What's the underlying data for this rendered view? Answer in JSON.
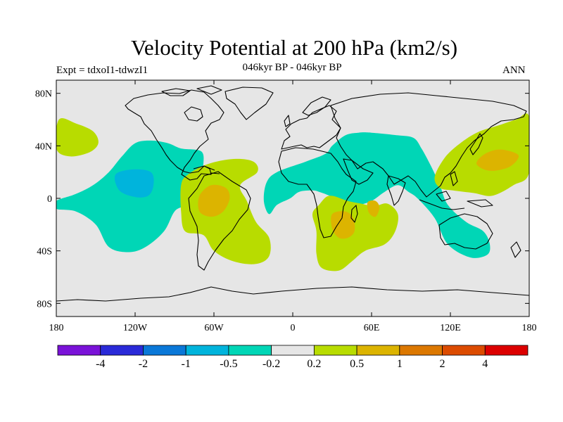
{
  "header": {
    "title": "Velocity Potential at 200 hPa (km2/s)",
    "left_subtitle": "Expt = tdxoI1-tdwzI1",
    "center_subtitle": "046kyr BP - 046kyr BP",
    "right_subtitle": "ANN"
  },
  "chart_data": {
    "type": "contour-map",
    "title": "Velocity Potential at 200 hPa (km2/s)",
    "projection": "cylindrical equidistant",
    "lon_range": [
      -180,
      180
    ],
    "lat_range": [
      -90,
      90
    ],
    "x_ticks": [
      {
        "lon": -180,
        "label": "180"
      },
      {
        "lon": -120,
        "label": "120W"
      },
      {
        "lon": -60,
        "label": "60W"
      },
      {
        "lon": 0,
        "label": "0"
      },
      {
        "lon": 60,
        "label": "60E"
      },
      {
        "lon": 120,
        "label": "120E"
      },
      {
        "lon": 180,
        "label": "180"
      }
    ],
    "y_ticks": [
      {
        "lat": 80,
        "label": "80N"
      },
      {
        "lat": 40,
        "label": "40N"
      },
      {
        "lat": 0,
        "label": "0"
      },
      {
        "lat": -40,
        "label": "40S"
      },
      {
        "lat": -80,
        "label": "80S"
      }
    ],
    "colorbar": {
      "colors": [
        "#7a12d8",
        "#2a2ad8",
        "#0a78d8",
        "#00b4dc",
        "#00d6b6",
        "#e6e6e6",
        "#b8dc00",
        "#dcb400",
        "#dc7800",
        "#dc4b00",
        "#dc0000"
      ],
      "labels": [
        "-4",
        "-2",
        "-1",
        "-0.5",
        "-0.2",
        "0.2",
        "0.5",
        "1",
        "2",
        "4"
      ]
    },
    "regions": [
      {
        "name": "central-pacific-north-positive",
        "level": "0.2-0.5",
        "color": "#b8dc00",
        "points": [
          [
            -180,
            38
          ],
          [
            -178,
            60
          ],
          [
            -165,
            57
          ],
          [
            -152,
            51
          ],
          [
            -148,
            42
          ],
          [
            -155,
            35
          ],
          [
            -170,
            32
          ]
        ]
      },
      {
        "name": "east-pacific-negative",
        "level": "-0.5--0.2",
        "color": "#00d6b6",
        "points": [
          [
            -180,
            -2
          ],
          [
            -180,
            -8
          ],
          [
            -165,
            -10
          ],
          [
            -150,
            -20
          ],
          [
            -140,
            -37
          ],
          [
            -125,
            -41
          ],
          [
            -112,
            -37
          ],
          [
            -98,
            -25
          ],
          [
            -90,
            -10
          ],
          [
            -82,
            -5
          ],
          [
            -75,
            5
          ],
          [
            -71,
            17
          ],
          [
            -68,
            27
          ],
          [
            -70,
            36
          ],
          [
            -85,
            38
          ],
          [
            -95,
            42
          ],
          [
            -108,
            44
          ],
          [
            -120,
            42
          ],
          [
            -130,
            32
          ],
          [
            -140,
            20
          ],
          [
            -152,
            10
          ],
          [
            -166,
            3
          ]
        ]
      },
      {
        "name": "east-pacific-negative-core",
        "level": "-1--0.5",
        "color": "#00b4dc",
        "points": [
          [
            -135,
            18
          ],
          [
            -122,
            22
          ],
          [
            -108,
            20
          ],
          [
            -106,
            10
          ],
          [
            -110,
            2
          ],
          [
            -120,
            1
          ],
          [
            -132,
            6
          ]
        ]
      },
      {
        "name": "south-america-positive",
        "level": "0.2-0.5",
        "color": "#b8dc00",
        "points": [
          [
            -85,
            10
          ],
          [
            -80,
            18
          ],
          [
            -65,
            26
          ],
          [
            -45,
            30
          ],
          [
            -30,
            28
          ],
          [
            -27,
            20
          ],
          [
            -40,
            10
          ],
          [
            -35,
            -2
          ],
          [
            -28,
            -18
          ],
          [
            -18,
            -30
          ],
          [
            -18,
            -44
          ],
          [
            -28,
            -50
          ],
          [
            -45,
            -48
          ],
          [
            -60,
            -40
          ],
          [
            -68,
            -28
          ],
          [
            -82,
            -25
          ],
          [
            -85,
            -10
          ]
        ]
      },
      {
        "name": "south-america-positive-core",
        "level": "0.5-1",
        "color": "#dcb400",
        "points": [
          [
            -71,
            2
          ],
          [
            -62,
            10
          ],
          [
            -51,
            8
          ],
          [
            -48,
            0
          ],
          [
            -53,
            -10
          ],
          [
            -62,
            -14
          ],
          [
            -71,
            -10
          ]
        ]
      },
      {
        "name": "eurasia-indian-ocean-negative",
        "level": "-0.5--0.2",
        "color": "#00d6b6",
        "points": [
          [
            -20,
            12
          ],
          [
            -12,
            20
          ],
          [
            10,
            28
          ],
          [
            25,
            34
          ],
          [
            30,
            40
          ],
          [
            40,
            48
          ],
          [
            50,
            50
          ],
          [
            60,
            50
          ],
          [
            80,
            48
          ],
          [
            92,
            46
          ],
          [
            98,
            38
          ],
          [
            105,
            25
          ],
          [
            112,
            10
          ],
          [
            118,
            -5
          ],
          [
            132,
            -18
          ],
          [
            145,
            -25
          ],
          [
            150,
            -35
          ],
          [
            148,
            -43
          ],
          [
            135,
            -45
          ],
          [
            118,
            -35
          ],
          [
            108,
            -15
          ],
          [
            95,
            0
          ],
          [
            88,
            5
          ],
          [
            80,
            10
          ],
          [
            70,
            5
          ],
          [
            60,
            -2
          ],
          [
            50,
            -5
          ],
          [
            42,
            -5
          ],
          [
            36,
            -2
          ],
          [
            28,
            2
          ],
          [
            20,
            5
          ],
          [
            15,
            6
          ],
          [
            5,
            5
          ],
          [
            -2,
            0
          ],
          [
            -12,
            -5
          ],
          [
            -18,
            -12
          ],
          [
            -22,
            -2
          ]
        ]
      },
      {
        "name": "africa-positive",
        "level": "0.2-0.5",
        "color": "#b8dc00",
        "points": [
          [
            20,
            -5
          ],
          [
            28,
            2
          ],
          [
            42,
            -2
          ],
          [
            52,
            -4
          ],
          [
            62,
            -6
          ],
          [
            72,
            -4
          ],
          [
            80,
            -12
          ],
          [
            78,
            -25
          ],
          [
            70,
            -35
          ],
          [
            55,
            -40
          ],
          [
            45,
            -48
          ],
          [
            35,
            -55
          ],
          [
            22,
            -53
          ],
          [
            18,
            -42
          ],
          [
            18,
            -25
          ],
          [
            15,
            -12
          ]
        ]
      },
      {
        "name": "africa-positive-core-west",
        "level": "0.5-1",
        "color": "#dcb400",
        "points": [
          [
            30,
            -12
          ],
          [
            40,
            -10
          ],
          [
            46,
            -15
          ],
          [
            47,
            -25
          ],
          [
            42,
            -30
          ],
          [
            35,
            -30
          ],
          [
            30,
            -23
          ]
        ]
      },
      {
        "name": "africa-positive-core-east",
        "level": "0.5-1",
        "color": "#dcb400",
        "points": [
          [
            57,
            -3
          ],
          [
            63,
            -2
          ],
          [
            66,
            -7
          ],
          [
            63,
            -14
          ],
          [
            58,
            -11
          ]
        ]
      },
      {
        "name": "west-pacific-positive",
        "level": "0.2-0.5",
        "color": "#b8dc00",
        "points": [
          [
            108,
            16
          ],
          [
            115,
            30
          ],
          [
            125,
            40
          ],
          [
            140,
            50
          ],
          [
            158,
            56
          ],
          [
            170,
            60
          ],
          [
            180,
            62
          ],
          [
            180,
            20
          ],
          [
            168,
            10
          ],
          [
            152,
            2
          ],
          [
            138,
            4
          ],
          [
            122,
            6
          ],
          [
            112,
            8
          ]
        ]
      },
      {
        "name": "west-pacific-positive-core",
        "level": "0.5-1",
        "color": "#dcb400",
        "points": [
          [
            140,
            26
          ],
          [
            145,
            33
          ],
          [
            155,
            37
          ],
          [
            165,
            36
          ],
          [
            172,
            32
          ],
          [
            165,
            24
          ],
          [
            150,
            21
          ]
        ]
      }
    ]
  }
}
